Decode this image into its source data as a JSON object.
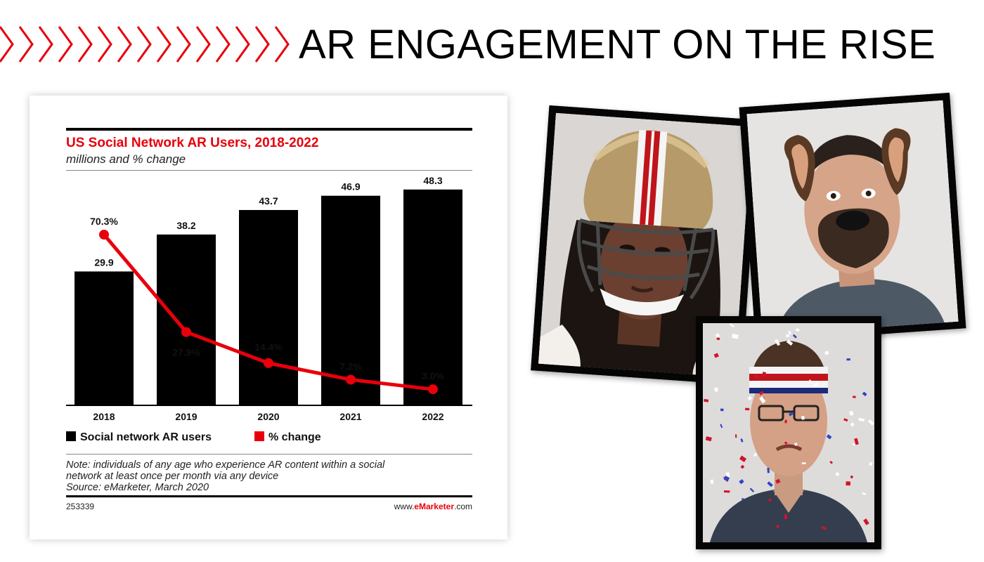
{
  "slide_title": "AR ENGAGEMENT ON THE RISE",
  "colors": {
    "accent": "#e8000b",
    "bar": "#000000"
  },
  "chart_data": {
    "type": "bar",
    "title": "US Social Network AR Users, 2018-2022",
    "subtitle": "millions and % change",
    "categories": [
      "2018",
      "2019",
      "2020",
      "2021",
      "2022"
    ],
    "series": [
      {
        "name": "Social network AR users",
        "type": "bar",
        "values": [
          29.9,
          38.2,
          43.7,
          46.9,
          48.3
        ],
        "labels": [
          "29.9",
          "38.2",
          "43.7",
          "46.9",
          "48.3"
        ]
      },
      {
        "name": "% change",
        "type": "line",
        "values": [
          70.3,
          27.9,
          14.4,
          7.2,
          3.0
        ],
        "labels": [
          "70.3%",
          "27.9%",
          "14.4%",
          "7.2%",
          "3.0%"
        ]
      }
    ],
    "ylim": [
      0,
      50
    ],
    "grid": false,
    "legend_position": "bottom-left",
    "note": [
      "Note: individuals of any age who experience AR content within a social",
      "network at least once per month via any device",
      "Source: eMarketer, March 2020"
    ],
    "chart_id": "253339",
    "source_prefix": "www.",
    "source_brand": "eMarketer",
    "source_suffix": ".com"
  },
  "photos": [
    {
      "icon": "helmet-filter-photo"
    },
    {
      "icon": "dog-filter-photo"
    },
    {
      "icon": "confetti-headband-filter-photo"
    }
  ]
}
